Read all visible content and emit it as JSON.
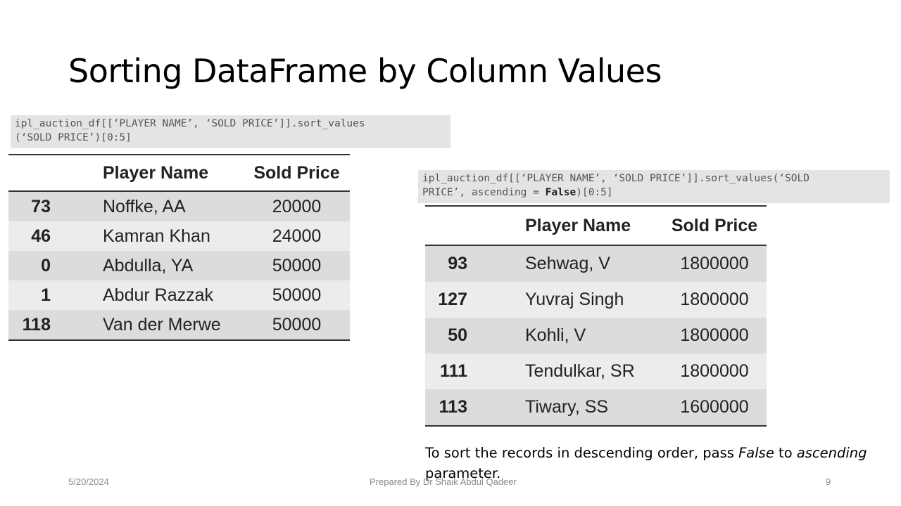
{
  "slide": {
    "title": "Sorting DataFrame by Column Values",
    "code_ascending": {
      "line1": "ipl_auction_df[[‘PLAYER NAME’, ‘SOLD PRICE’]].sort_values",
      "line2": "(‘SOLD PRICE’)[0:5]"
    },
    "code_descending": {
      "line1": "ipl_auction_df[[‘PLAYER NAME’, ‘SOLD PRICE’]].sort_values(‘SOLD",
      "line2_pre": "PRICE’, ascending = ",
      "line2_keyword": "False",
      "line2_post": ")[0:5]"
    },
    "table_ascending": {
      "headers": [
        "",
        "Player Name",
        "Sold Price"
      ],
      "rows": [
        {
          "index": "73",
          "name": "Noffke, AA",
          "price": "20000"
        },
        {
          "index": "46",
          "name": "Kamran Khan",
          "price": "24000"
        },
        {
          "index": "0",
          "name": "Abdulla, YA",
          "price": "50000"
        },
        {
          "index": "1",
          "name": "Abdur Razzak",
          "price": "50000"
        },
        {
          "index": "118",
          "name": "Van der Merwe",
          "price": "50000"
        }
      ]
    },
    "table_descending": {
      "headers": [
        "",
        "Player Name",
        "Sold Price"
      ],
      "rows": [
        {
          "index": "93",
          "name": "Sehwag, V",
          "price": "1800000"
        },
        {
          "index": "127",
          "name": "Yuvraj Singh",
          "price": "1800000"
        },
        {
          "index": "50",
          "name": "Kohli, V",
          "price": "1800000"
        },
        {
          "index": "111",
          "name": "Tendulkar, SR",
          "price": "1800000"
        },
        {
          "index": "113",
          "name": "Tiwary, SS",
          "price": "1600000"
        }
      ]
    },
    "caption": {
      "part1": "To sort the records in descending order, pass ",
      "em1": "False",
      "part2": " to ",
      "em2": "ascending",
      "part3": " parameter."
    }
  },
  "footer": {
    "date": "5/20/2024",
    "author": "Prepared By Dr Shaik Abdul Qadeer",
    "page_number": "9"
  }
}
